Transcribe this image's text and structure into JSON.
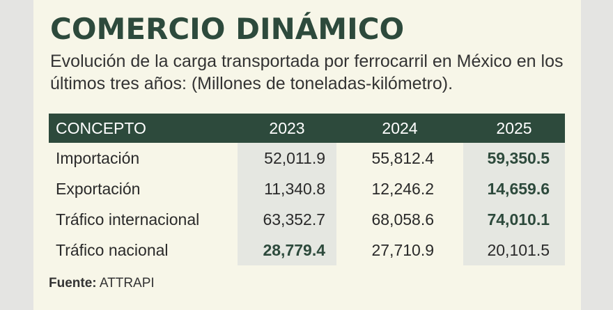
{
  "title": "COMERCIO DINÁMICO",
  "subtitle": "Evolución de la carga transportada por ferrocarril en México en los últimos tres años: (Millones de toneladas-kilómetro).",
  "chart_data": {
    "type": "table",
    "columns": [
      "CONCEPTO",
      "2023",
      "2024",
      "2025"
    ],
    "rows": [
      {
        "label": "Importación",
        "values": [
          "52,011.9",
          "55,812.4",
          "59,350.5"
        ],
        "highlight_index": 2
      },
      {
        "label": "Exportación",
        "values": [
          "11,340.8",
          "12,246.2",
          "14,659.6"
        ],
        "highlight_index": 2
      },
      {
        "label": "Tráfico internacional",
        "values": [
          "63,352.7",
          "68,058.6",
          "74,010.1"
        ],
        "highlight_index": 2
      },
      {
        "label": "Tráfico nacional",
        "values": [
          "28,779.4",
          "27,710.9",
          "20,101.5"
        ],
        "highlight_index": 0
      }
    ]
  },
  "source": {
    "label": "Fuente:",
    "text": "ATTRAPI"
  },
  "colors": {
    "accent": "#2d4a3c",
    "background": "#f7f6e8",
    "shade": "#e5e7e1"
  }
}
